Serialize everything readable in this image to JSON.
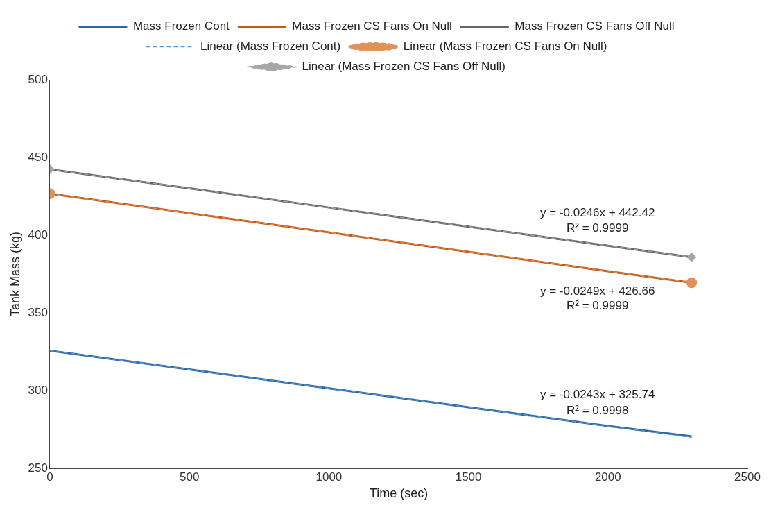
{
  "chart_data": {
    "type": "line",
    "xlabel": "Time (sec)",
    "ylabel": "Tank Mass (kg)",
    "xlim": [
      0,
      2500
    ],
    "xticks": [
      0,
      500,
      1000,
      1500,
      2000,
      2500
    ],
    "ylim": [
      250,
      500
    ],
    "yticks": [
      250,
      300,
      350,
      400,
      450,
      500
    ],
    "grid": false,
    "legend": "top",
    "marker": "none",
    "line_style": "solid",
    "series": [
      {
        "name": "Mass Frozen Cont",
        "color": "#2e67a3",
        "x": [
          0,
          500,
          1000,
          1500,
          2000,
          2300
        ],
        "values": [
          325.7,
          313.6,
          301.5,
          289.3,
          277.2,
          270.5
        ]
      },
      {
        "name": "Mass Frozen CS Fans On Null",
        "color": "#c05a1c",
        "x": [
          0,
          500,
          1000,
          1500,
          2000,
          2300
        ],
        "values": [
          426.7,
          414.2,
          401.8,
          389.3,
          376.8,
          369.4
        ]
      },
      {
        "name": "Mass Frozen CS Fans Off Null",
        "color": "#666666",
        "x": [
          0,
          500,
          1000,
          1500,
          2000,
          2300
        ],
        "values": [
          442.4,
          430.1,
          417.8,
          405.5,
          393.2,
          385.8
        ]
      },
      {
        "name": "Linear (Mass Frozen Cont)",
        "type": "line",
        "line_style": "dashed",
        "marker": "none",
        "color": "#5b9bd5",
        "x": [
          0,
          2300
        ],
        "values": [
          325.74,
          269.85
        ]
      },
      {
        "name": "Linear (Mass Frozen CS Fans On Null)",
        "type": "line",
        "line_style": "dashed",
        "marker": "circle",
        "color": "#e0925a",
        "x": [
          0,
          2300
        ],
        "values": [
          426.66,
          369.39
        ]
      },
      {
        "name": "Linear (Mass Frozen CS Fans Off Null)",
        "type": "line",
        "line_style": "dashed",
        "marker": "diamond",
        "color": "#a6a6a6",
        "x": [
          0,
          2300
        ],
        "values": [
          442.42,
          385.84
        ]
      }
    ],
    "annotations": [
      "y = -0.0246x + 442.42",
      "R² = 0.9999",
      "y = -0.0249x + 426.66",
      "R² = 0.9999",
      "y = -0.0243x + 325.74",
      "R² = 0.9998"
    ]
  }
}
